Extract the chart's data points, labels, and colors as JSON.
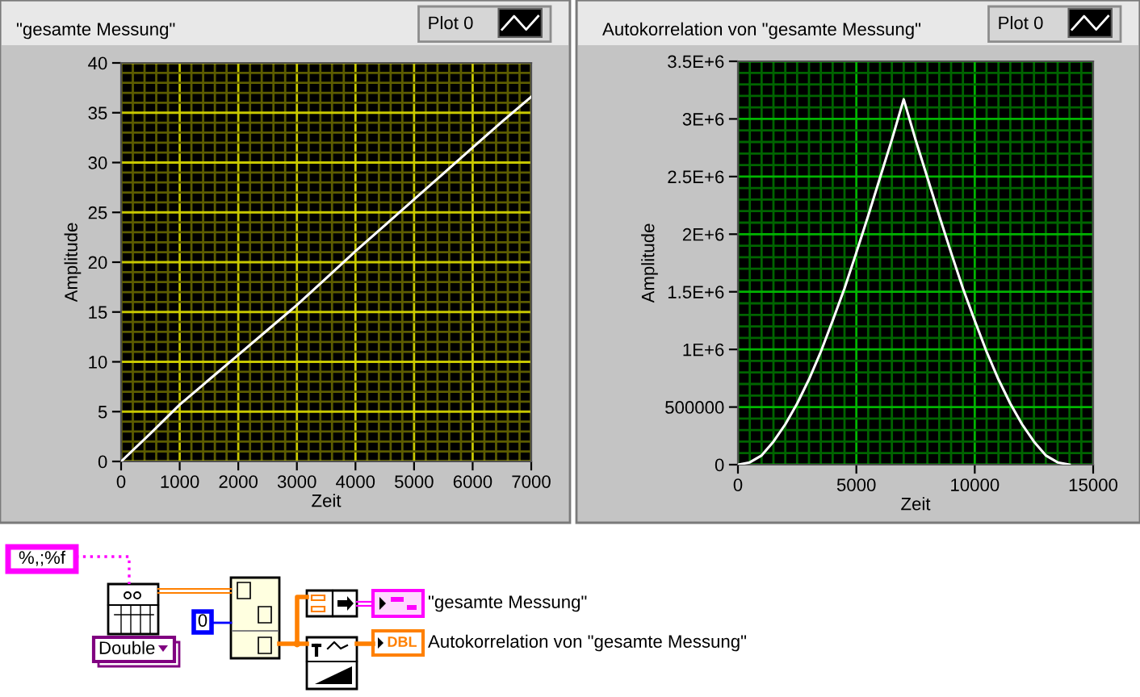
{
  "chart_data": [
    {
      "type": "line",
      "title": "\"gesamte Messung\"",
      "xlabel": "Zeit",
      "ylabel": "Amplitude",
      "x": [
        0,
        500,
        1000,
        1500,
        2000,
        2500,
        3000,
        3500,
        4000,
        4500,
        5000,
        5500,
        6000,
        6500,
        7000
      ],
      "series": [
        {
          "name": "Plot 0",
          "color": "#ffffff",
          "values": [
            0,
            2.8,
            5.7,
            8.2,
            10.7,
            13.2,
            15.7,
            18.4,
            21.1,
            23.7,
            26.3,
            28.9,
            31.5,
            34.1,
            36.6
          ]
        }
      ],
      "xlim": [
        0,
        7000
      ],
      "ylim": [
        0,
        40
      ],
      "xticks": [
        0,
        {
          "value": 200,
          "label": null
        },
        {
          "value": 400,
          "label": null
        },
        {
          "value": 600,
          "label": null
        },
        {
          "value": 800,
          "label": null
        },
        1000,
        {
          "value": 1200,
          "label": null
        },
        {
          "value": 1400,
          "label": null
        },
        {
          "value": 1600,
          "label": null
        },
        {
          "value": 1800,
          "label": null
        },
        2000,
        {
          "value": 2200,
          "label": null
        },
        {
          "value": 2400,
          "label": null
        },
        {
          "value": 2600,
          "label": null
        },
        {
          "value": 2800,
          "label": null
        },
        3000,
        {
          "value": 3200,
          "label": null
        },
        {
          "value": 3400,
          "label": null
        },
        {
          "value": 3600,
          "label": null
        },
        {
          "value": 3800,
          "label": null
        },
        4000,
        {
          "value": 4200,
          "label": null
        },
        {
          "value": 4400,
          "label": null
        },
        {
          "value": 4600,
          "label": null
        },
        {
          "value": 4800,
          "label": null
        },
        5000,
        {
          "value": 5200,
          "label": null
        },
        {
          "value": 5400,
          "label": null
        },
        {
          "value": 5600,
          "label": null
        },
        {
          "value": 5800,
          "label": null
        },
        6000,
        {
          "value": 6200,
          "label": null
        },
        {
          "value": 6400,
          "label": null
        },
        {
          "value": 6600,
          "label": null
        },
        {
          "value": 6800,
          "label": null
        },
        7000
      ],
      "yticks": [
        0,
        {
          "value": 1,
          "label": null
        },
        {
          "value": 2,
          "label": null
        },
        {
          "value": 3,
          "label": null
        },
        {
          "value": 4,
          "label": null
        },
        5,
        {
          "value": 6,
          "label": null
        },
        {
          "value": 7,
          "label": null
        },
        {
          "value": 8,
          "label": null
        },
        {
          "value": 9,
          "label": null
        },
        10,
        {
          "value": 11,
          "label": null
        },
        {
          "value": 12,
          "label": null
        },
        {
          "value": 13,
          "label": null
        },
        {
          "value": 14,
          "label": null
        },
        15,
        {
          "value": 16,
          "label": null
        },
        {
          "value": 17,
          "label": null
        },
        {
          "value": 18,
          "label": null
        },
        {
          "value": 19,
          "label": null
        },
        20,
        {
          "value": 21,
          "label": null
        },
        {
          "value": 22,
          "label": null
        },
        {
          "value": 23,
          "label": null
        },
        {
          "value": 24,
          "label": null
        },
        25,
        {
          "value": 26,
          "label": null
        },
        {
          "value": 27,
          "label": null
        },
        {
          "value": 28,
          "label": null
        },
        {
          "value": 29,
          "label": null
        },
        30,
        {
          "value": 31,
          "label": null
        },
        {
          "value": 32,
          "label": null
        },
        {
          "value": 33,
          "label": null
        },
        {
          "value": 34,
          "label": null
        },
        35,
        {
          "value": 36,
          "label": null
        },
        {
          "value": 37,
          "label": null
        },
        {
          "value": 38,
          "label": null
        },
        {
          "value": 39,
          "label": null
        },
        40
      ],
      "grid": true,
      "legend": "top right"
    },
    {
      "type": "line",
      "title": "Autokorrelation von \"gesamte Messung\"",
      "xlabel": "Zeit",
      "ylabel": "Amplitude",
      "x": [
        0,
        500,
        1000,
        1500,
        2000,
        2500,
        3000,
        3500,
        4000,
        4500,
        5000,
        5500,
        6000,
        6500,
        7000,
        7500,
        8000,
        8500,
        9000,
        9500,
        10000,
        10500,
        11000,
        11500,
        12000,
        12500,
        13000,
        13500,
        14000
      ],
      "series": [
        {
          "name": "Plot 0",
          "color": "#ffffff",
          "values": [
            0,
            20000,
            80000,
            200000,
            350000,
            530000,
            740000,
            980000,
            1250000,
            1530000,
            1840000,
            2160000,
            2490000,
            2820000,
            3170000,
            2820000,
            2490000,
            2160000,
            1840000,
            1530000,
            1250000,
            980000,
            740000,
            530000,
            350000,
            200000,
            80000,
            20000,
            0
          ]
        }
      ],
      "xlim": [
        0,
        15000
      ],
      "ylim": [
        0,
        3500000
      ],
      "xticks": [
        0,
        {
          "value": 500,
          "label": null
        },
        {
          "value": 1000,
          "label": null
        },
        {
          "value": 1500,
          "label": null
        },
        {
          "value": 2000,
          "label": null
        },
        {
          "value": 2500,
          "label": null
        },
        {
          "value": 3000,
          "label": null
        },
        {
          "value": 3500,
          "label": null
        },
        {
          "value": 4000,
          "label": null
        },
        {
          "value": 4500,
          "label": null
        },
        5000,
        {
          "value": 5500,
          "label": null
        },
        {
          "value": 6000,
          "label": null
        },
        {
          "value": 6500,
          "label": null
        },
        {
          "value": 7000,
          "label": null
        },
        {
          "value": 7500,
          "label": null
        },
        {
          "value": 8000,
          "label": null
        },
        {
          "value": 8500,
          "label": null
        },
        {
          "value": 9000,
          "label": null
        },
        {
          "value": 9500,
          "label": null
        },
        10000,
        {
          "value": 10500,
          "label": null
        },
        {
          "value": 11000,
          "label": null
        },
        {
          "value": 11500,
          "label": null
        },
        {
          "value": 12000,
          "label": null
        },
        {
          "value": 12500,
          "label": null
        },
        {
          "value": 13000,
          "label": null
        },
        {
          "value": 13500,
          "label": null
        },
        {
          "value": 14000,
          "label": null
        },
        {
          "value": 14500,
          "label": null
        },
        15000
      ],
      "yticks": [
        0,
        {
          "value": 100000,
          "label": null
        },
        {
          "value": 200000,
          "label": null
        },
        {
          "value": 300000,
          "label": null
        },
        {
          "value": 400000,
          "label": null
        },
        500000,
        {
          "value": 600000,
          "label": null
        },
        {
          "value": 700000,
          "label": null
        },
        {
          "value": 800000,
          "label": null
        },
        {
          "value": 900000,
          "label": null
        },
        {
          "value": 1000000,
          "label": "1E+6"
        },
        {
          "value": 1100000,
          "label": null
        },
        {
          "value": 1200000,
          "label": null
        },
        {
          "value": 1300000,
          "label": null
        },
        {
          "value": 1400000,
          "label": null
        },
        {
          "value": 1500000,
          "label": "1.5E+6"
        },
        {
          "value": 1600000,
          "label": null
        },
        {
          "value": 1700000,
          "label": null
        },
        {
          "value": 1800000,
          "label": null
        },
        {
          "value": 1900000,
          "label": null
        },
        {
          "value": 2000000,
          "label": "2E+6"
        },
        {
          "value": 2100000,
          "label": null
        },
        {
          "value": 2200000,
          "label": null
        },
        {
          "value": 2300000,
          "label": null
        },
        {
          "value": 2400000,
          "label": null
        },
        {
          "value": 2500000,
          "label": "2.5E+6"
        },
        {
          "value": 2600000,
          "label": null
        },
        {
          "value": 2700000,
          "label": null
        },
        {
          "value": 2800000,
          "label": null
        },
        {
          "value": 2900000,
          "label": null
        },
        {
          "value": 3000000,
          "label": "3E+6"
        },
        {
          "value": 3100000,
          "label": null
        },
        {
          "value": 3200000,
          "label": null
        },
        {
          "value": 3300000,
          "label": null
        },
        {
          "value": 3400000,
          "label": null
        },
        {
          "value": 3500000,
          "label": "3.5E+6"
        }
      ],
      "grid": true,
      "legend": "top right"
    },
    {
      "type": "other",
      "annotations": [
        "%,;%f",
        "Double",
        "0",
        "DBL",
        "\"gesamte Messung\"",
        "Autokorrelation von \"gesamte Messung\""
      ]
    }
  ]
}
